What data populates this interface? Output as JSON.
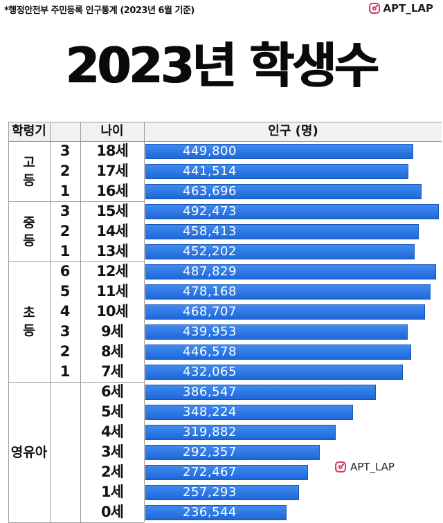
{
  "source": "*행정안전부 주민등록 인구통계 (2023년 6월 기준)",
  "brand": "APT_LAP",
  "title": "2023년 학생수",
  "headers": {
    "stage": "학령기",
    "age": "나이",
    "population": "인구 (명)"
  },
  "groups": [
    {
      "label": "고\n등",
      "rows": [
        0,
        2
      ]
    },
    {
      "label": "중\n등",
      "rows": [
        3,
        5
      ]
    },
    {
      "label": "초\n등",
      "rows": [
        6,
        11
      ]
    },
    {
      "label": "영유아",
      "rows": [
        12,
        18
      ]
    }
  ],
  "chart_data": {
    "type": "bar",
    "orientation": "horizontal",
    "title": "2023년 학생수",
    "xlabel": "인구 (명)",
    "categories": [
      "18세",
      "17세",
      "16세",
      "15세",
      "14세",
      "13세",
      "12세",
      "11세",
      "10세",
      "9세",
      "8세",
      "7세",
      "6세",
      "5세",
      "4세",
      "3세",
      "2세",
      "1세",
      "0세"
    ],
    "grades": [
      "3",
      "2",
      "1",
      "3",
      "2",
      "1",
      "6",
      "5",
      "4",
      "3",
      "2",
      "1",
      "",
      "",
      "",
      "",
      "",
      "",
      ""
    ],
    "values": [
      449800,
      441514,
      463696,
      492473,
      458413,
      452202,
      487829,
      478168,
      468707,
      439953,
      446578,
      432065,
      386547,
      348224,
      319882,
      292357,
      272467,
      257293,
      236544
    ],
    "value_labels": [
      "449,800",
      "441,514",
      "463,696",
      "492,473",
      "458,413",
      "452,202",
      "487,829",
      "478,168",
      "468,707",
      "439,953",
      "446,578",
      "432,065",
      "386,547",
      "348,224",
      "319,882",
      "292,357",
      "272,467",
      "257,293",
      "236,544"
    ],
    "bar_color": "#2a74e4"
  }
}
